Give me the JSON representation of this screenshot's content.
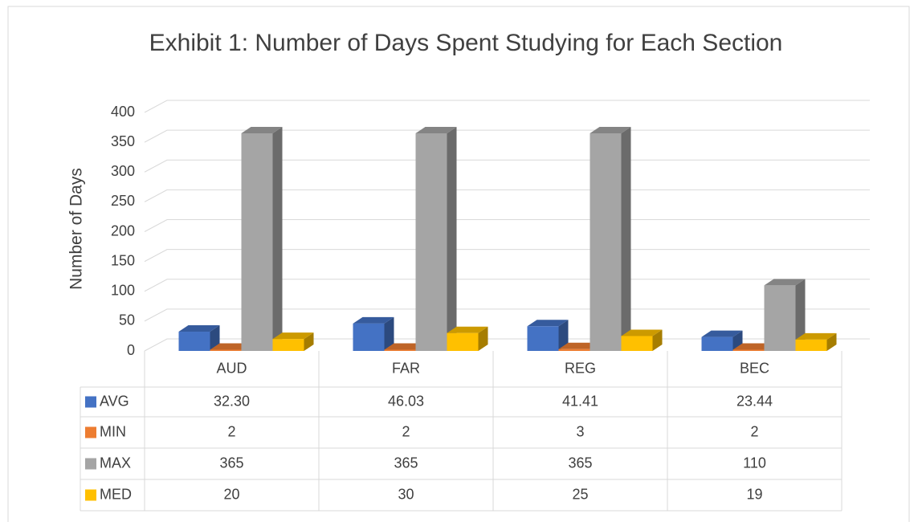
{
  "chart_data": {
    "type": "bar3d",
    "title": "Exhibit 1: Number of Days Spent Studying for Each Section",
    "y_label": "Number of Days",
    "categories": [
      "AUD",
      "FAR",
      "REG",
      "BEC"
    ],
    "series": [
      {
        "name": "AVG",
        "color": "#4472c4",
        "values": [
          32.3,
          46.03,
          41.41,
          23.44
        ],
        "value_labels": [
          "32.30",
          "46.03",
          "41.41",
          "23.44"
        ]
      },
      {
        "name": "MIN",
        "color": "#ed7d31",
        "values": [
          2,
          2,
          3,
          2
        ]
      },
      {
        "name": "MAX",
        "color": "#a5a5a5",
        "values": [
          365,
          365,
          365,
          110
        ]
      },
      {
        "name": "MED",
        "color": "#ffc000",
        "values": [
          20,
          30,
          25,
          19
        ]
      }
    ],
    "ylim": [
      0,
      400
    ],
    "yticks": [
      0,
      50,
      100,
      150,
      200,
      250,
      300,
      350,
      400
    ],
    "grid": true,
    "data_table": true
  }
}
